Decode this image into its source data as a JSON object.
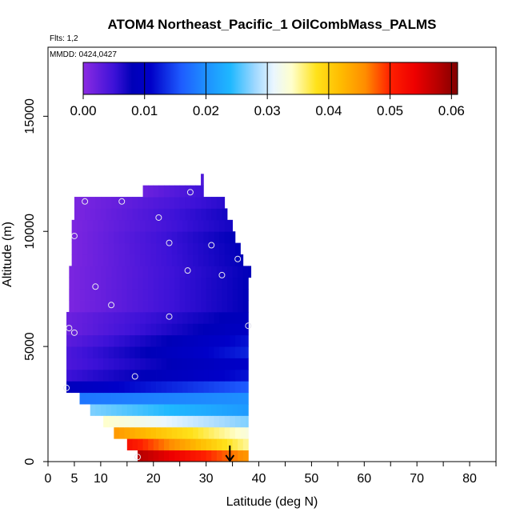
{
  "chart_data": {
    "type": "heatmap",
    "title": "ATOM4 Northeast_Pacific_1 OilCombMass_PALMS",
    "flights_label": "Flts: 1,2",
    "dates_label": "MMDD: 0424,0427",
    "xlabel": "Latitude (deg N)",
    "ylabel": "Altitude (m)",
    "xlim": [
      0,
      85
    ],
    "ylim": [
      0,
      18000
    ],
    "x_ticks": [
      0,
      5,
      10,
      20,
      30,
      40,
      50,
      60,
      70,
      80
    ],
    "y_ticks": [
      0,
      5000,
      10000,
      15000
    ],
    "colorbar": {
      "min": 0,
      "max": 0.061,
      "ticks": [
        "0.00",
        "0.01",
        "0.02",
        "0.03",
        "0.04",
        "0.05",
        "0.06"
      ],
      "tick_values": [
        0,
        0.01,
        0.02,
        0.03,
        0.04,
        0.05,
        0.06
      ],
      "gradient_stops": [
        {
          "value": 0.0,
          "color": "#8b2be2"
        },
        {
          "value": 0.005,
          "color": "#3d12d8"
        },
        {
          "value": 0.008,
          "color": "#0000b8"
        },
        {
          "value": 0.011,
          "color": "#0000c8"
        },
        {
          "value": 0.016,
          "color": "#1e5cff"
        },
        {
          "value": 0.02,
          "color": "#1e90ff"
        },
        {
          "value": 0.024,
          "color": "#1fb8ff"
        },
        {
          "value": 0.028,
          "color": "#9fd8ff"
        },
        {
          "value": 0.031,
          "color": "#eaf6ff"
        },
        {
          "value": 0.034,
          "color": "#ffffcc"
        },
        {
          "value": 0.038,
          "color": "#ffe21a"
        },
        {
          "value": 0.042,
          "color": "#ffbb00"
        },
        {
          "value": 0.046,
          "color": "#ff8c00"
        },
        {
          "value": 0.05,
          "color": "#ff2000"
        },
        {
          "value": 0.054,
          "color": "#ee0000"
        },
        {
          "value": 0.058,
          "color": "#b30000"
        },
        {
          "value": 0.061,
          "color": "#800000"
        }
      ]
    },
    "cell_height": 500,
    "cells": [
      {
        "alt": 0,
        "lat_start": 17,
        "lat_end": 38,
        "v_start": 0.058,
        "v_end": 0.045
      },
      {
        "alt": 500,
        "lat_start": 15,
        "lat_end": 38,
        "v_start": 0.052,
        "v_end": 0.035
      },
      {
        "alt": 1000,
        "lat_start": 12.5,
        "lat_end": 38,
        "v_start": 0.045,
        "v_end": 0.033
      },
      {
        "alt": 1500,
        "lat_start": 10.5,
        "lat_end": 38,
        "v_start": 0.034,
        "v_end": 0.027
      },
      {
        "alt": 2000,
        "lat_start": 8,
        "lat_end": 38,
        "v_start": 0.027,
        "v_end": 0.021
      },
      {
        "alt": 2500,
        "lat_start": 6,
        "lat_end": 38,
        "v_start": 0.018,
        "v_end": 0.02
      },
      {
        "alt": 3000,
        "lat_start": 3.5,
        "lat_end": 38,
        "v_start": 0.009,
        "v_end": 0.016
      },
      {
        "alt": 3500,
        "lat_start": 3.5,
        "lat_end": 38,
        "v_start": 0.005,
        "v_end": 0.012
      },
      {
        "alt": 4000,
        "lat_start": 3.5,
        "lat_end": 38,
        "v_start": 0.004,
        "v_end": 0.011
      },
      {
        "alt": 4500,
        "lat_start": 3.5,
        "lat_end": 38,
        "v_start": 0.004,
        "v_end": 0.013
      },
      {
        "alt": 5000,
        "lat_start": 3.5,
        "lat_end": 38,
        "v_start": 0.003,
        "v_end": 0.012
      },
      {
        "alt": 5500,
        "lat_start": 3.5,
        "lat_end": 38,
        "v_start": 0.002,
        "v_end": 0.01
      },
      {
        "alt": 6000,
        "lat_start": 3.5,
        "lat_end": 38,
        "v_start": 0.002,
        "v_end": 0.009
      },
      {
        "alt": 6500,
        "lat_start": 4,
        "lat_end": 38,
        "v_start": 0.001,
        "v_end": 0.008
      },
      {
        "alt": 7000,
        "lat_start": 4,
        "lat_end": 38,
        "v_start": 0.001,
        "v_end": 0.008
      },
      {
        "alt": 7500,
        "lat_start": 4,
        "lat_end": 38,
        "v_start": 0.001,
        "v_end": 0.008
      },
      {
        "alt": 8000,
        "lat_start": 4,
        "lat_end": 38.5,
        "v_start": 0.001,
        "v_end": 0.008
      },
      {
        "alt": 8500,
        "lat_start": 4.5,
        "lat_end": 37,
        "v_start": 0.001,
        "v_end": 0.008
      },
      {
        "alt": 9000,
        "lat_start": 4.5,
        "lat_end": 36.5,
        "v_start": 0.001,
        "v_end": 0.008
      },
      {
        "alt": 9500,
        "lat_start": 4.5,
        "lat_end": 35.5,
        "v_start": 0.001,
        "v_end": 0.008
      },
      {
        "alt": 10000,
        "lat_start": 4.5,
        "lat_end": 35,
        "v_start": 0.001,
        "v_end": 0.007
      },
      {
        "alt": 10500,
        "lat_start": 5,
        "lat_end": 34,
        "v_start": 0.001,
        "v_end": 0.007
      },
      {
        "alt": 11000,
        "lat_start": 5,
        "lat_end": 33.5,
        "v_start": 0.001,
        "v_end": 0.006
      },
      {
        "alt": 11500,
        "lat_start": 18,
        "lat_end": 29.5,
        "v_start": 0.002,
        "v_end": 0.005
      },
      {
        "alt": 12000,
        "lat_start": 29,
        "lat_end": 29.5,
        "v_start": 0.004,
        "v_end": 0.004
      }
    ],
    "points": [
      {
        "lat": 7,
        "alt": 11300
      },
      {
        "lat": 14,
        "alt": 11300
      },
      {
        "lat": 27,
        "alt": 11700
      },
      {
        "lat": 21,
        "alt": 10600
      },
      {
        "lat": 5,
        "alt": 9800
      },
      {
        "lat": 23,
        "alt": 9500
      },
      {
        "lat": 31,
        "alt": 9400
      },
      {
        "lat": 36,
        "alt": 8800
      },
      {
        "lat": 26.5,
        "alt": 8300
      },
      {
        "lat": 33,
        "alt": 8100
      },
      {
        "lat": 9,
        "alt": 7600
      },
      {
        "lat": 12,
        "alt": 6800
      },
      {
        "lat": 23,
        "alt": 6300
      },
      {
        "lat": 4,
        "alt": 5800
      },
      {
        "lat": 5,
        "alt": 5600
      },
      {
        "lat": 38,
        "alt": 5900
      },
      {
        "lat": 16.5,
        "alt": 3700
      },
      {
        "lat": 3.5,
        "alt": 3200
      },
      {
        "lat": 17,
        "alt": 200
      }
    ],
    "arrow": {
      "lat": 34.5,
      "alt_top": 700,
      "alt_bottom": 0
    }
  }
}
